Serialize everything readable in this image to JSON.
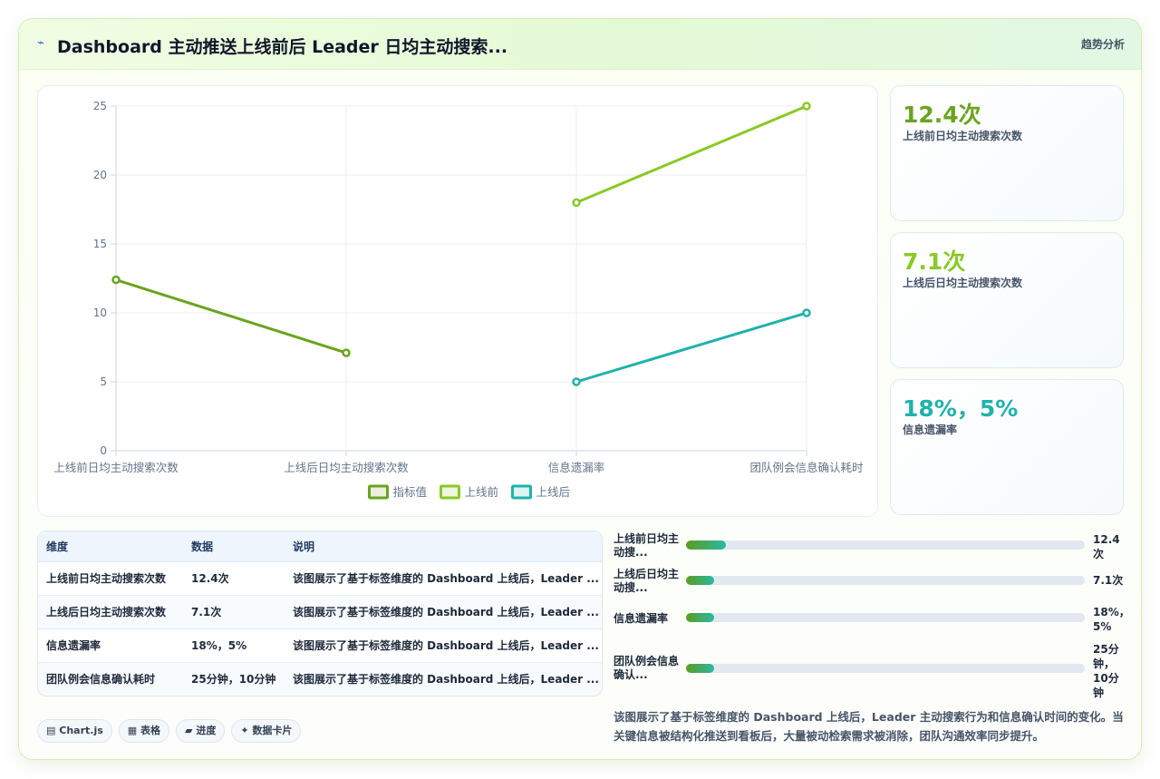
{
  "header": {
    "icon": "chart-line-icon",
    "title": "Dashboard 主动推送上线前后 Leader 日均主动搜索...",
    "right_label": "趋势分析"
  },
  "chart_data": {
    "type": "line",
    "categories": [
      "上线前日均主动搜索次数",
      "上线后日均主动搜索次数",
      "信息遗漏率",
      "团队例会信息确认耗时"
    ],
    "series": [
      {
        "name": "指标值",
        "color": "#6aa31f",
        "values": [
          12.4,
          7.1,
          null,
          null
        ]
      },
      {
        "name": "上线前",
        "color": "#8ac926",
        "values": [
          null,
          null,
          18,
          25
        ]
      },
      {
        "name": "上线后",
        "color": "#20b2aa",
        "values": [
          null,
          null,
          5,
          10
        ]
      }
    ],
    "ylim": [
      0,
      25
    ],
    "yticks": [
      "0",
      "5",
      "10",
      "15",
      "20",
      "25"
    ],
    "grid": true,
    "legend_position": "bottom"
  },
  "kpis": [
    {
      "value": "12.4次",
      "label": "上线前日均主动搜索次数",
      "color": "#6aa31f"
    },
    {
      "value": "7.1次",
      "label": "上线后日均主动搜索次数",
      "color": "#8ac926"
    },
    {
      "value": "18%，5%",
      "label": "信息遗漏率",
      "color": "#20b2aa"
    }
  ],
  "table": {
    "headers": [
      "维度",
      "数据",
      "说明"
    ],
    "rows": [
      [
        "上线前日均主动搜索次数",
        "12.4次",
        "该图展示了基于标签维度的 Dashboard 上线后，Leader ..."
      ],
      [
        "上线后日均主动搜索次数",
        "7.1次",
        "该图展示了基于标签维度的 Dashboard 上线后，Leader ..."
      ],
      [
        "信息遗漏率",
        "18%，5%",
        "该图展示了基于标签维度的 Dashboard 上线后，Leader ..."
      ],
      [
        "团队例会信息确认耗时",
        "25分钟，10分钟",
        "该图展示了基于标签维度的 Dashboard 上线后，Leader ..."
      ]
    ]
  },
  "progress": [
    {
      "label": "上线前日均主动搜...",
      "value": "12.4次",
      "fraction": 0.1
    },
    {
      "label": "上线后日均主动搜...",
      "value": "7.1次",
      "fraction": 0.07
    },
    {
      "label": "信息遗漏率",
      "value": "18%，5%",
      "fraction": 0.07
    },
    {
      "label": "团队例会信息确认...",
      "value": "25分钟，10分钟",
      "fraction": 0.07
    }
  ],
  "description": "该图展示了基于标签维度的 Dashboard 上线后，Leader 主动搜索行为和信息确认时间的变化。当关键信息被结构化推送到看板后，大量被动检索需求被消除，团队沟通效率同步提升。",
  "chips": [
    {
      "icon": "chart-icon",
      "glyph": "▤",
      "label": "Chart.js"
    },
    {
      "icon": "table-icon",
      "glyph": "▦",
      "label": "表格"
    },
    {
      "icon": "progress-icon",
      "glyph": "▰",
      "label": "进度"
    },
    {
      "icon": "sparkle-icon",
      "glyph": "✦",
      "label": "数据卡片"
    }
  ]
}
